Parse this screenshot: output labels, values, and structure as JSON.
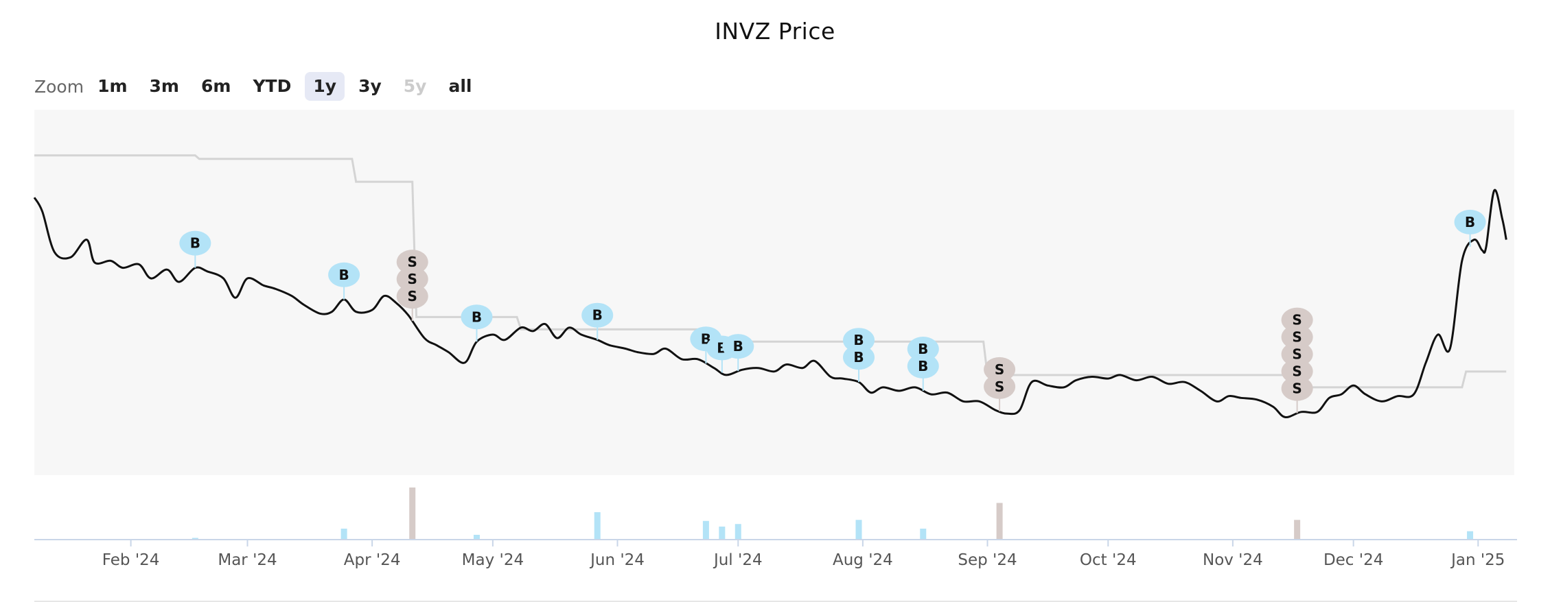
{
  "title": "INVZ Price",
  "zoom": {
    "label": "Zoom",
    "buttons": [
      {
        "label": "1m",
        "state": "normal"
      },
      {
        "label": "3m",
        "state": "normal"
      },
      {
        "label": "6m",
        "state": "normal"
      },
      {
        "label": "YTD",
        "state": "normal"
      },
      {
        "label": "1y",
        "state": "selected"
      },
      {
        "label": "3y",
        "state": "normal"
      },
      {
        "label": "5y",
        "state": "disabled"
      },
      {
        "label": "all",
        "state": "normal"
      }
    ]
  },
  "colors": {
    "price_line": "#111111",
    "band_line": "#d4d4d4",
    "plot_background": "#f7f7f7",
    "buy": "#b3e3f7",
    "sell": "#d6cbc8",
    "axis": "#c9d6e8"
  },
  "chart_data": {
    "type": "line",
    "title": "INVZ Price",
    "x_range": [
      "2024-01-08",
      "2025-01-10"
    ],
    "x_ticks": [
      "Feb '24",
      "Mar '24",
      "Apr '24",
      "May '24",
      "Jun '24",
      "Jul '24",
      "Aug '24",
      "Sep '24",
      "Oct '24",
      "Nov '24",
      "Dec '24",
      "Jan '25"
    ],
    "grid": false,
    "legend": "none",
    "price": [
      [
        "2024-01-08",
        2.86
      ],
      [
        "2024-01-10",
        2.78
      ],
      [
        "2024-01-13",
        2.55
      ],
      [
        "2024-01-17",
        2.52
      ],
      [
        "2024-01-21",
        2.62
      ],
      [
        "2024-01-23",
        2.49
      ],
      [
        "2024-01-27",
        2.5
      ],
      [
        "2024-01-30",
        2.46
      ],
      [
        "2024-02-03",
        2.48
      ],
      [
        "2024-02-06",
        2.4
      ],
      [
        "2024-02-10",
        2.45
      ],
      [
        "2024-02-13",
        2.38
      ],
      [
        "2024-02-17",
        2.46
      ],
      [
        "2024-02-20",
        2.44
      ],
      [
        "2024-02-24",
        2.4
      ],
      [
        "2024-02-27",
        2.29
      ],
      [
        "2024-03-01",
        2.4
      ],
      [
        "2024-03-05",
        2.36
      ],
      [
        "2024-03-08",
        2.34
      ],
      [
        "2024-03-12",
        2.3
      ],
      [
        "2024-03-15",
        2.25
      ],
      [
        "2024-03-19",
        2.2
      ],
      [
        "2024-03-22",
        2.21
      ],
      [
        "2024-03-25",
        2.28
      ],
      [
        "2024-03-28",
        2.21
      ],
      [
        "2024-04-01",
        2.22
      ],
      [
        "2024-04-04",
        2.3
      ],
      [
        "2024-04-07",
        2.26
      ],
      [
        "2024-04-10",
        2.19
      ],
      [
        "2024-04-14",
        2.06
      ],
      [
        "2024-04-17",
        2.02
      ],
      [
        "2024-04-20",
        1.98
      ],
      [
        "2024-04-24",
        1.92
      ],
      [
        "2024-04-27",
        2.04
      ],
      [
        "2024-05-01",
        2.08
      ],
      [
        "2024-05-04",
        2.05
      ],
      [
        "2024-05-08",
        2.12
      ],
      [
        "2024-05-11",
        2.1
      ],
      [
        "2024-05-14",
        2.14
      ],
      [
        "2024-05-17",
        2.06
      ],
      [
        "2024-05-20",
        2.12
      ],
      [
        "2024-05-23",
        2.08
      ],
      [
        "2024-05-27",
        2.05
      ],
      [
        "2024-05-30",
        2.02
      ],
      [
        "2024-06-03",
        2.0
      ],
      [
        "2024-06-06",
        1.98
      ],
      [
        "2024-06-10",
        1.97
      ],
      [
        "2024-06-13",
        2.0
      ],
      [
        "2024-06-17",
        1.94
      ],
      [
        "2024-06-21",
        1.94
      ],
      [
        "2024-06-25",
        1.89
      ],
      [
        "2024-06-28",
        1.85
      ],
      [
        "2024-07-02",
        1.88
      ],
      [
        "2024-07-06",
        1.89
      ],
      [
        "2024-07-10",
        1.87
      ],
      [
        "2024-07-13",
        1.91
      ],
      [
        "2024-07-17",
        1.89
      ],
      [
        "2024-07-20",
        1.93
      ],
      [
        "2024-07-24",
        1.84
      ],
      [
        "2024-07-27",
        1.83
      ],
      [
        "2024-07-31",
        1.81
      ],
      [
        "2024-08-03",
        1.75
      ],
      [
        "2024-08-06",
        1.78
      ],
      [
        "2024-08-10",
        1.76
      ],
      [
        "2024-08-14",
        1.78
      ],
      [
        "2024-08-18",
        1.74
      ],
      [
        "2024-08-22",
        1.75
      ],
      [
        "2024-08-26",
        1.7
      ],
      [
        "2024-08-30",
        1.7
      ],
      [
        "2024-09-03",
        1.65
      ],
      [
        "2024-09-06",
        1.63
      ],
      [
        "2024-09-09",
        1.65
      ],
      [
        "2024-09-12",
        1.81
      ],
      [
        "2024-09-16",
        1.79
      ],
      [
        "2024-09-20",
        1.78
      ],
      [
        "2024-09-23",
        1.82
      ],
      [
        "2024-09-27",
        1.84
      ],
      [
        "2024-10-01",
        1.83
      ],
      [
        "2024-10-04",
        1.85
      ],
      [
        "2024-10-08",
        1.82
      ],
      [
        "2024-10-12",
        1.84
      ],
      [
        "2024-10-16",
        1.8
      ],
      [
        "2024-10-20",
        1.81
      ],
      [
        "2024-10-24",
        1.76
      ],
      [
        "2024-10-28",
        1.7
      ],
      [
        "2024-10-31",
        1.73
      ],
      [
        "2024-11-03",
        1.72
      ],
      [
        "2024-11-07",
        1.71
      ],
      [
        "2024-11-11",
        1.67
      ],
      [
        "2024-11-14",
        1.61
      ],
      [
        "2024-11-18",
        1.64
      ],
      [
        "2024-11-22",
        1.64
      ],
      [
        "2024-11-25",
        1.72
      ],
      [
        "2024-11-28",
        1.74
      ],
      [
        "2024-12-01",
        1.79
      ],
      [
        "2024-12-04",
        1.74
      ],
      [
        "2024-12-08",
        1.7
      ],
      [
        "2024-12-12",
        1.73
      ],
      [
        "2024-12-16",
        1.74
      ],
      [
        "2024-12-19",
        1.92
      ],
      [
        "2024-12-22",
        2.08
      ],
      [
        "2024-12-25",
        2.0
      ],
      [
        "2024-12-28",
        2.5
      ],
      [
        "2024-12-31",
        2.62
      ],
      [
        "2025-01-02",
        2.56
      ],
      [
        "2025-01-03",
        2.58
      ],
      [
        "2025-01-05",
        2.9
      ],
      [
        "2025-01-07",
        2.74
      ],
      [
        "2025-01-08",
        2.62
      ]
    ],
    "band": [
      [
        "2024-01-08",
        3.1
      ],
      [
        "2024-02-17",
        3.1
      ],
      [
        "2024-02-18",
        3.08
      ],
      [
        "2024-03-27",
        3.08
      ],
      [
        "2024-03-28",
        2.95
      ],
      [
        "2024-04-11",
        2.95
      ],
      [
        "2024-04-12",
        2.18
      ],
      [
        "2024-05-07",
        2.18
      ],
      [
        "2024-05-08",
        2.11
      ],
      [
        "2024-06-22",
        2.11
      ],
      [
        "2024-06-23",
        2.04
      ],
      [
        "2024-08-31",
        2.04
      ],
      [
        "2024-09-01",
        1.85
      ],
      [
        "2024-11-18",
        1.85
      ],
      [
        "2024-11-19",
        1.78
      ],
      [
        "2024-12-28",
        1.78
      ],
      [
        "2024-12-29",
        1.87
      ],
      [
        "2025-01-08",
        1.87
      ]
    ],
    "trades": [
      {
        "date": "2024-02-17",
        "signals": [
          "B"
        ],
        "volume": 2
      },
      {
        "date": "2024-03-25",
        "signals": [
          "B"
        ],
        "volume": 20
      },
      {
        "date": "2024-04-11",
        "signals": [
          "S",
          "S",
          "S"
        ],
        "volume": 100
      },
      {
        "date": "2024-04-27",
        "signals": [
          "B"
        ],
        "volume": 8
      },
      {
        "date": "2024-05-27",
        "signals": [
          "B"
        ],
        "volume": 52
      },
      {
        "date": "2024-06-23",
        "signals": [
          "B"
        ],
        "volume": 35
      },
      {
        "date": "2024-06-27",
        "signals": [
          "B"
        ],
        "volume": 24
      },
      {
        "date": "2024-07-01",
        "signals": [
          "B"
        ],
        "volume": 29
      },
      {
        "date": "2024-07-31",
        "signals": [
          "B",
          "B"
        ],
        "volume": 37
      },
      {
        "date": "2024-08-16",
        "signals": [
          "B",
          "B"
        ],
        "volume": 20
      },
      {
        "date": "2024-09-04",
        "signals": [
          "S",
          "S"
        ],
        "volume": 70
      },
      {
        "date": "2024-11-17",
        "signals": [
          "S",
          "S",
          "S",
          "S",
          "S"
        ],
        "volume": 37
      },
      {
        "date": "2024-12-30",
        "signals": [
          "B"
        ],
        "volume": 15
      }
    ]
  }
}
